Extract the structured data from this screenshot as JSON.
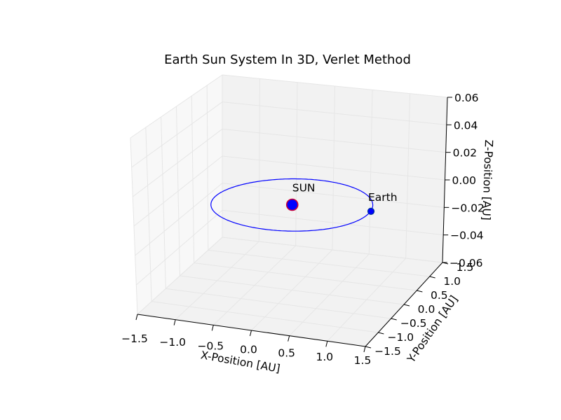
{
  "chart_data": {
    "type": "scatter",
    "title": "Earth Sun System In 3D, Verlet Method",
    "xlabel": "X-Position [AU]",
    "ylabel": "Y-Position [AU]",
    "zlabel": "Z-Position [AU]",
    "xlim": [
      -1.5,
      1.5
    ],
    "ylim": [
      -1.5,
      1.5
    ],
    "zlim": [
      -0.06,
      0.06
    ],
    "grid": true,
    "x_ticks": [
      "−1.5",
      "−1.0",
      "−0.5",
      "0.0",
      "0.5",
      "1.0",
      "1.5"
    ],
    "y_ticks": [
      "−1.5",
      "−1.0",
      "−0.5",
      "0.0",
      "0.5",
      "1.0",
      "1.5"
    ],
    "z_ticks": [
      "−0.06",
      "−0.04",
      "−0.02",
      "0.00",
      "0.02",
      "0.04",
      "0.06"
    ],
    "series": [
      {
        "kind": "line",
        "description_color": "#0000ff",
        "center": [
          0,
          0,
          0
        ],
        "radius": 1.0,
        "z": 0.0
      }
    ],
    "points": [
      {
        "label": "SUN",
        "x": 0.0,
        "y": 0.0,
        "z": 0.0,
        "fill": "#0000ff",
        "edge": "#cc0033"
      },
      {
        "label": "Earth",
        "x": 1.0,
        "y": 0.1,
        "z": 0.0,
        "fill": "#0000ff",
        "edge": "#003399"
      }
    ],
    "colors": {
      "orbit": "#0000ff",
      "pane": "#f2f2f2",
      "grid": "#e6e6e6",
      "axis_line": "#000000"
    }
  }
}
